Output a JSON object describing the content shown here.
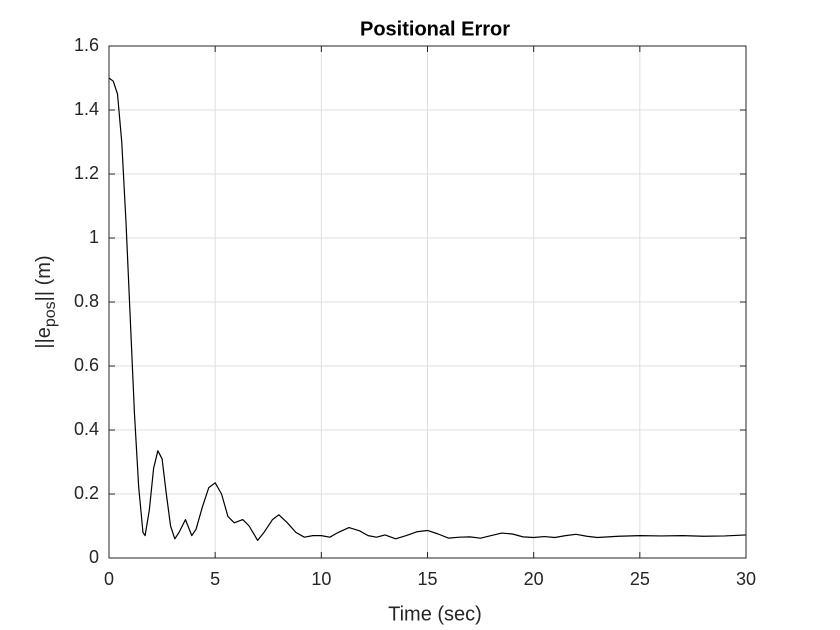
{
  "chart_data": {
    "type": "line",
    "title": "Positional Error",
    "xlabel": "Time (sec)",
    "ylabel": [
      "||e",
      "pos",
      "|| (m)"
    ],
    "x": [
      0,
      0.2,
      0.4,
      0.6,
      0.8,
      1.0,
      1.2,
      1.4,
      1.6,
      1.7,
      1.9,
      2.1,
      2.3,
      2.5,
      2.7,
      2.9,
      3.1,
      3.3,
      3.6,
      3.9,
      4.1,
      4.4,
      4.7,
      5.0,
      5.3,
      5.6,
      5.9,
      6.3,
      6.6,
      7.0,
      7.3,
      7.7,
      8.0,
      8.4,
      8.8,
      9.2,
      9.6,
      10.0,
      10.4,
      10.8,
      11.3,
      11.8,
      12.2,
      12.6,
      13.0,
      13.5,
      14.0,
      14.5,
      15.0,
      15.5,
      16.0,
      16.5,
      17.0,
      17.5,
      18.0,
      18.5,
      19.0,
      19.5,
      20.0,
      20.5,
      21.0,
      21.5,
      22.0,
      22.5,
      23.0,
      23.5,
      24.0,
      25.0,
      26.0,
      27.0,
      28.0,
      29.0,
      30.0
    ],
    "series": [
      {
        "color": "#000000",
        "values": [
          1.5,
          1.49,
          1.45,
          1.3,
          1.05,
          0.75,
          0.45,
          0.22,
          0.08,
          0.07,
          0.15,
          0.28,
          0.335,
          0.31,
          0.2,
          0.1,
          0.06,
          0.08,
          0.12,
          0.07,
          0.09,
          0.16,
          0.22,
          0.235,
          0.2,
          0.13,
          0.11,
          0.12,
          0.1,
          0.055,
          0.08,
          0.12,
          0.135,
          0.11,
          0.08,
          0.065,
          0.07,
          0.07,
          0.065,
          0.08,
          0.095,
          0.085,
          0.07,
          0.065,
          0.072,
          0.06,
          0.07,
          0.082,
          0.086,
          0.075,
          0.062,
          0.065,
          0.066,
          0.062,
          0.07,
          0.078,
          0.075,
          0.066,
          0.064,
          0.067,
          0.064,
          0.07,
          0.074,
          0.068,
          0.064,
          0.066,
          0.068,
          0.07,
          0.069,
          0.07,
          0.068,
          0.069,
          0.072
        ]
      }
    ],
    "xlim": [
      0,
      30
    ],
    "xticks": [
      0,
      5,
      10,
      15,
      20,
      25,
      30
    ],
    "ylim": [
      0,
      1.6
    ],
    "yticks": [
      0,
      0.2,
      0.4,
      0.6,
      0.8,
      1,
      1.2,
      1.4,
      1.6
    ],
    "grid": true
  }
}
